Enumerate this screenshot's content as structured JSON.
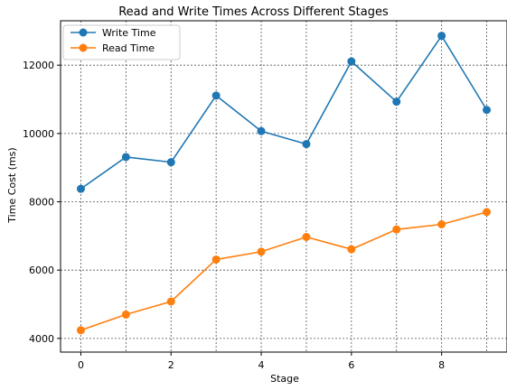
{
  "chart_data": {
    "type": "line",
    "title": "Read and Write Times Across Different Stages",
    "xlabel": "Stage",
    "ylabel": "Time Cost (ms)",
    "x": [
      0,
      1,
      2,
      3,
      4,
      5,
      6,
      7,
      8,
      9
    ],
    "xlim": [
      -0.45,
      9.45
    ],
    "ylim": [
      3600,
      13300
    ],
    "xticks": [
      0,
      2,
      4,
      6,
      8
    ],
    "yticks": [
      4000,
      6000,
      8000,
      10000,
      12000
    ],
    "xtick_labels": [
      "0",
      "2",
      "4",
      "6",
      "8"
    ],
    "ytick_labels": [
      "4000",
      "6000",
      "8000",
      "10000",
      "12000"
    ],
    "grid": true,
    "legend_position": "top-left",
    "series": [
      {
        "name": "Write Time",
        "color": "#1f77b4",
        "marker": "circle",
        "values": [
          8380,
          9310,
          9160,
          11110,
          10070,
          9690,
          12110,
          10930,
          12860,
          10690
        ]
      },
      {
        "name": "Read Time",
        "color": "#ff7f0e",
        "marker": "circle",
        "values": [
          4240,
          4700,
          5080,
          6310,
          6540,
          6970,
          6610,
          7190,
          7340,
          7700
        ]
      }
    ]
  }
}
